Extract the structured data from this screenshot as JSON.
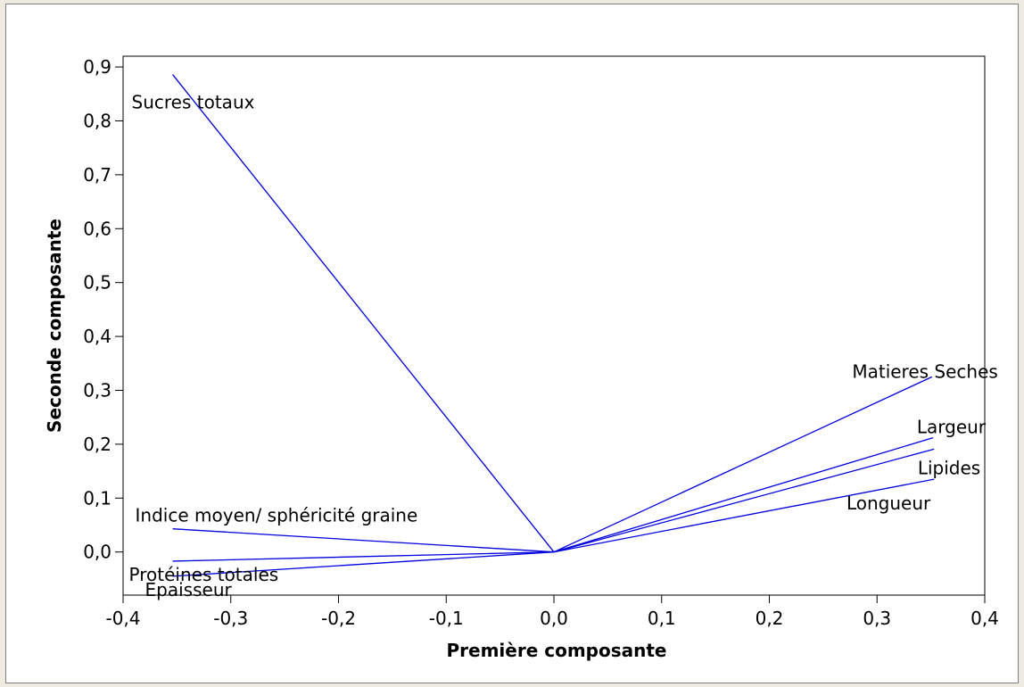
{
  "chart_data": {
    "type": "line",
    "title": "",
    "xlabel": "Première composante",
    "ylabel": "Seconde composante",
    "xlim": [
      -0.4,
      0.4
    ],
    "ylim": [
      -0.08,
      0.92
    ],
    "xticks": [
      -0.4,
      -0.3,
      -0.2,
      -0.1,
      0.0,
      0.1,
      0.2,
      0.3,
      0.4
    ],
    "xtick_labels": [
      "-0,4",
      "-0,3",
      "-0,2",
      "-0,1",
      "0,0",
      "0,1",
      "0,2",
      "0,3",
      "0,4"
    ],
    "yticks": [
      0.0,
      0.1,
      0.2,
      0.3,
      0.4,
      0.5,
      0.6,
      0.7,
      0.8,
      0.9
    ],
    "ytick_labels": [
      "0,0",
      "0,1",
      "0,2",
      "0,3",
      "0,4",
      "0,5",
      "0,6",
      "0,7",
      "0,8",
      "0,9"
    ],
    "grid": false,
    "line_color": "#0000dd",
    "origin": [
      0.0,
      0.0
    ],
    "vectors": [
      {
        "label": "Sucres totaux",
        "x": -0.354,
        "y": 0.886
      },
      {
        "label": "Matieres Seches",
        "x": 0.351,
        "y": 0.325
      },
      {
        "label": "Largeur",
        "x": 0.352,
        "y": 0.212
      },
      {
        "label": "Lipides",
        "x": 0.353,
        "y": 0.191
      },
      {
        "label": "Longueur",
        "x": 0.353,
        "y": 0.135
      },
      {
        "label": "Indice moyen/ sphéricité graine",
        "x": -0.354,
        "y": 0.043
      },
      {
        "label": "Protéines totales",
        "x": -0.354,
        "y": -0.017
      },
      {
        "label": "Epaisseur",
        "x": -0.354,
        "y": -0.045
      }
    ]
  }
}
